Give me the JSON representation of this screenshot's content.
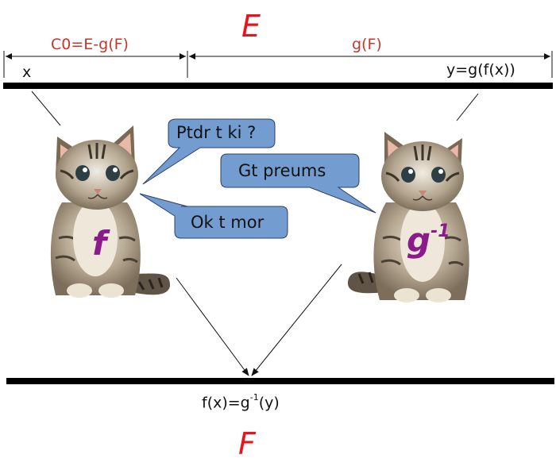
{
  "labels": {
    "set_top": "E",
    "set_bottom": "F",
    "dim_left": "C0=E-g(F)",
    "dim_right": "g(F)",
    "point_x": "x",
    "point_y": "y=g(f(x))",
    "result_base": "f(x)=g",
    "result_sup": "-1",
    "result_tail": "(y)"
  },
  "cats": {
    "left_function": "f",
    "right_function_base": "g",
    "right_function_sup": "-1"
  },
  "bubbles": {
    "bubble1": "Ptdr t ki ?",
    "bubble2": "Gt preums",
    "bubble3": "Ok t mor"
  },
  "colors": {
    "set_label": "#e8141c",
    "dimension_label": "#c0392b",
    "function_label": "#8b1a8b",
    "bubble_fill": "#739dd0",
    "bubble_stroke": "#2c3e66"
  }
}
